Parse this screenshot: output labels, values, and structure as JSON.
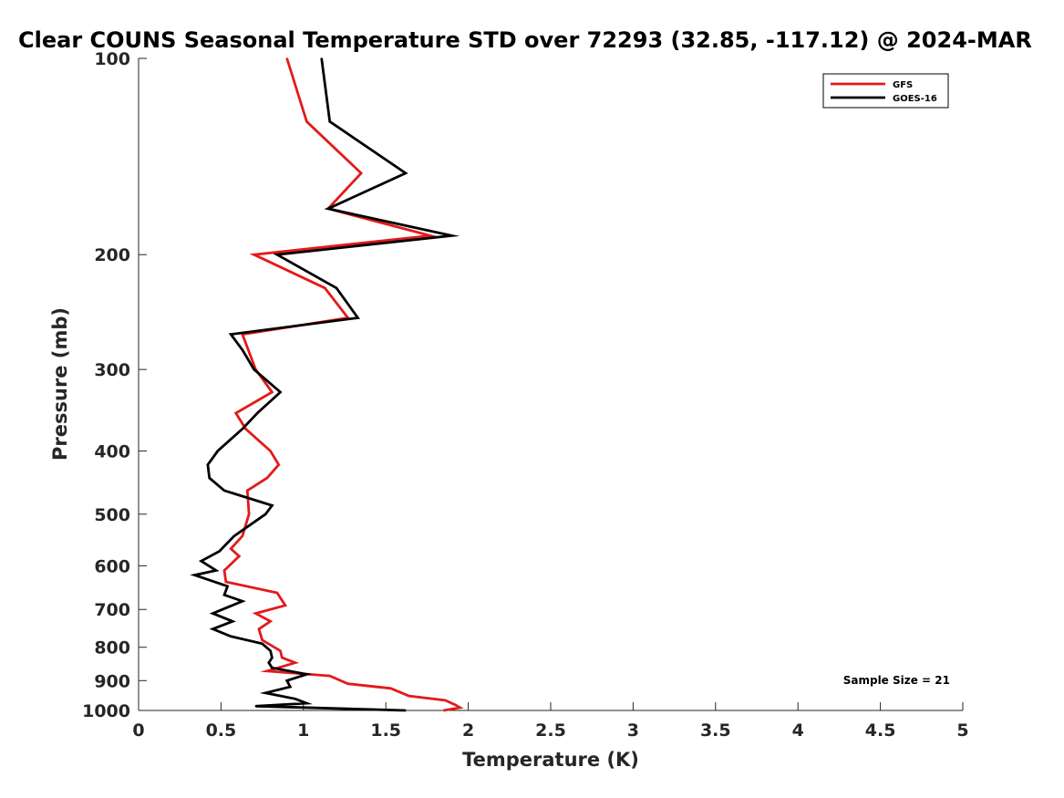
{
  "chart_data": {
    "type": "line",
    "title": "Clear COUNS Seasonal Temperature STD over 72293 (32.85, -117.12) @ 2024-MAR",
    "xlabel": "Temperature (K)",
    "ylabel": "Pressure (mb)",
    "xlim": [
      0,
      5
    ],
    "ylim": [
      100,
      1000
    ],
    "y_scale": "log",
    "y_reversed": true,
    "grid": false,
    "legend_position": "top-right",
    "x_ticks": [
      0,
      0.5,
      1,
      1.5,
      2,
      2.5,
      3,
      3.5,
      4,
      4.5,
      5
    ],
    "x_tick_labels": [
      "0",
      "0.5",
      "1",
      "1.5",
      "2",
      "2.5",
      "3",
      "3.5",
      "4",
      "4.5",
      "5"
    ],
    "y_ticks": [
      100,
      200,
      300,
      400,
      500,
      600,
      700,
      800,
      900,
      1000
    ],
    "y_tick_labels": [
      "100",
      "200",
      "300",
      "400",
      "500",
      "600",
      "700",
      "800",
      "900",
      "1000"
    ],
    "annotation": "Sample Size = 21",
    "series": [
      {
        "name": "GFS",
        "color": "#e31a1a",
        "points": [
          [
            0.9,
            100
          ],
          [
            1.02,
            125
          ],
          [
            1.35,
            150
          ],
          [
            1.15,
            170
          ],
          [
            1.77,
            187
          ],
          [
            0.7,
            200
          ],
          [
            1.13,
            225
          ],
          [
            1.27,
            250
          ],
          [
            0.63,
            265
          ],
          [
            0.71,
            300
          ],
          [
            0.81,
            325
          ],
          [
            0.59,
            350
          ],
          [
            0.65,
            370
          ],
          [
            0.8,
            400
          ],
          [
            0.85,
            420
          ],
          [
            0.78,
            440
          ],
          [
            0.66,
            460
          ],
          [
            0.67,
            500
          ],
          [
            0.63,
            540
          ],
          [
            0.56,
            565
          ],
          [
            0.61,
            580
          ],
          [
            0.52,
            610
          ],
          [
            0.53,
            635
          ],
          [
            0.84,
            660
          ],
          [
            0.89,
            690
          ],
          [
            0.71,
            710
          ],
          [
            0.8,
            730
          ],
          [
            0.73,
            750
          ],
          [
            0.75,
            780
          ],
          [
            0.86,
            810
          ],
          [
            0.87,
            830
          ],
          [
            0.95,
            845
          ],
          [
            0.78,
            870
          ],
          [
            1.16,
            885
          ],
          [
            1.27,
            910
          ],
          [
            1.53,
            925
          ],
          [
            1.64,
            950
          ],
          [
            1.86,
            965
          ],
          [
            1.92,
            980
          ],
          [
            1.95,
            990
          ],
          [
            1.85,
            1000
          ]
        ]
      },
      {
        "name": "GOES-16",
        "color": "#000000",
        "points": [
          [
            1.11,
            100
          ],
          [
            1.16,
            125
          ],
          [
            1.62,
            150
          ],
          [
            1.15,
            170
          ],
          [
            1.9,
            187
          ],
          [
            0.84,
            200
          ],
          [
            1.2,
            225
          ],
          [
            1.33,
            250
          ],
          [
            0.56,
            265
          ],
          [
            0.63,
            280
          ],
          [
            0.7,
            300
          ],
          [
            0.86,
            325
          ],
          [
            0.72,
            350
          ],
          [
            0.63,
            370
          ],
          [
            0.48,
            400
          ],
          [
            0.42,
            420
          ],
          [
            0.43,
            440
          ],
          [
            0.52,
            460
          ],
          [
            0.81,
            485
          ],
          [
            0.77,
            500
          ],
          [
            0.58,
            540
          ],
          [
            0.49,
            570
          ],
          [
            0.38,
            590
          ],
          [
            0.47,
            610
          ],
          [
            0.34,
            620
          ],
          [
            0.54,
            645
          ],
          [
            0.52,
            665
          ],
          [
            0.63,
            680
          ],
          [
            0.45,
            710
          ],
          [
            0.57,
            730
          ],
          [
            0.45,
            750
          ],
          [
            0.56,
            770
          ],
          [
            0.75,
            790
          ],
          [
            0.8,
            810
          ],
          [
            0.81,
            830
          ],
          [
            0.79,
            845
          ],
          [
            0.81,
            860
          ],
          [
            1.02,
            880
          ],
          [
            0.9,
            900
          ],
          [
            0.92,
            920
          ],
          [
            0.77,
            940
          ],
          [
            0.95,
            960
          ],
          [
            1.02,
            975
          ],
          [
            0.71,
            985
          ],
          [
            1.62,
            1000
          ]
        ]
      }
    ]
  }
}
